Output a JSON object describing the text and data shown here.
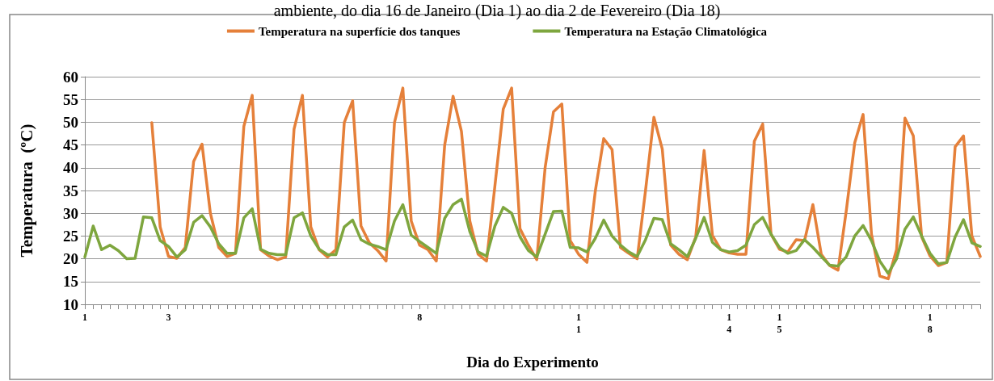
{
  "chart_data": {
    "type": "line",
    "title": "ambiente, do dia 16 de Janeiro (Dia 1) ao dia 2 de Fevereiro (Dia 18)",
    "xlabel": "Dia do Experimento",
    "ylabel": "Temperatura  (ºC)",
    "ylim": [
      10,
      60
    ],
    "yticks": [
      10,
      15,
      20,
      25,
      30,
      35,
      40,
      45,
      50,
      55,
      60
    ],
    "categories": [
      "1",
      null,
      null,
      null,
      null,
      null,
      null,
      null,
      null,
      null,
      "3",
      null,
      null,
      null,
      null,
      null,
      null,
      null,
      null,
      null,
      null,
      null,
      null,
      null,
      null,
      null,
      null,
      null,
      null,
      null,
      null,
      null,
      null,
      null,
      null,
      null,
      null,
      null,
      null,
      null,
      "8",
      null,
      null,
      null,
      null,
      null,
      null,
      null,
      null,
      null,
      null,
      null,
      null,
      null,
      null,
      null,
      null,
      null,
      null,
      "11",
      null,
      null,
      null,
      null,
      null,
      null,
      null,
      null,
      null,
      null,
      null,
      null,
      null,
      null,
      null,
      null,
      null,
      "14",
      null,
      null,
      null,
      null,
      null,
      "15",
      null,
      null,
      null,
      null,
      null,
      null,
      null,
      null,
      null,
      null,
      null,
      null,
      null,
      null,
      null,
      null,
      null,
      "18",
      null,
      null,
      null,
      null,
      null,
      null
    ],
    "grid": "y",
    "legend": "top",
    "marker": "none",
    "line_style": "solid",
    "series": [
      {
        "name": "Temperatura na superfície dos tanques",
        "color": "#e5803a",
        "values": [
          null,
          null,
          null,
          null,
          null,
          null,
          null,
          null,
          49.9,
          27,
          20.5,
          20.1,
          22.5,
          41.4,
          45.2,
          30,
          22.5,
          20.5,
          21.2,
          49.1,
          55.9,
          22.0,
          20.6,
          19.8,
          20.4,
          48.5,
          55.9,
          27,
          22,
          20.4,
          22,
          49.9,
          54.7,
          27.2,
          23.5,
          21.8,
          19.5,
          49.9,
          57.5,
          28.3,
          23.0,
          22.0,
          19.5,
          45,
          55.7,
          48,
          28.3,
          21,
          19.5,
          36,
          52.9,
          57.5,
          26.6,
          23.0,
          19.8,
          40,
          52.3,
          54.0,
          24,
          21,
          19.2,
          34.9,
          46.4,
          44.0,
          22.5,
          21.2,
          20,
          35,
          51.1,
          44.1,
          23,
          21,
          19.8,
          24.8,
          43.8,
          25.1,
          22,
          21.3,
          21,
          21,
          45.8,
          49.6,
          25.4,
          22.1,
          21.5,
          24.2,
          24,
          31.9,
          21,
          18.5,
          17.5,
          30.7,
          45.5,
          51.7,
          25.4,
          16.2,
          15.6,
          22,
          50.9,
          47,
          24.8,
          20.6,
          18.5,
          19.2,
          44.6,
          47.0,
          25,
          20.5
        ]
      },
      {
        "name": "Temperatura na Estação Climatológica",
        "color": "#7ea63e",
        "values": [
          20.4,
          27.2,
          22.0,
          23.0,
          21.8,
          20.0,
          20.1,
          29.2,
          29,
          24,
          22.7,
          20.4,
          22,
          28.0,
          29.5,
          27.0,
          23.3,
          21.2,
          21.2,
          29,
          31.0,
          22.1,
          21.2,
          20.9,
          20.9,
          29.0,
          30.1,
          25,
          22.1,
          20.9,
          20.9,
          27,
          28.5,
          24.2,
          23.2,
          22.7,
          22,
          28.3,
          31.9,
          25.2,
          23.8,
          22.5,
          21.2,
          28.9,
          31.9,
          33.1,
          26.0,
          21.5,
          20.6,
          27.2,
          31.3,
          30.0,
          24.8,
          21.8,
          20.4,
          25.4,
          30.4,
          30.5,
          22.5,
          22.4,
          21.5,
          24.5,
          28.5,
          25,
          23.0,
          21.5,
          20.5,
          24.2,
          28.9,
          28.6,
          23.3,
          22,
          20.5,
          24.5,
          29.1,
          23.6,
          22,
          21.5,
          21.8,
          23,
          27.5,
          29.1,
          25.4,
          22.5,
          21.2,
          21.8,
          24.2,
          22.5,
          20.5,
          18.6,
          18.4,
          20.5,
          25,
          27.3,
          24.0,
          19.5,
          16.8,
          20,
          26.5,
          29.2,
          25,
          21.2,
          18.9,
          19.2,
          24.8,
          28.6,
          23.5,
          22.7
        ]
      }
    ]
  }
}
